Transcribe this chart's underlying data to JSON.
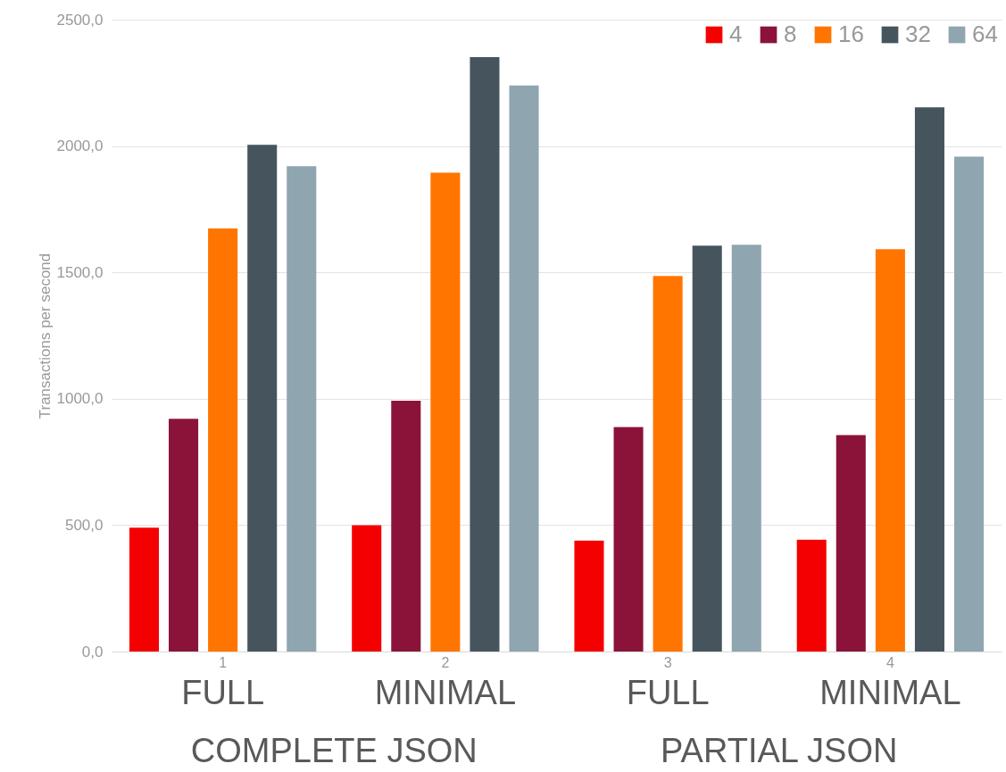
{
  "chart_data": {
    "type": "bar",
    "ylabel": "Transactions per second",
    "categories": [
      "1",
      "2",
      "3",
      "4"
    ],
    "series": [
      {
        "name": "4",
        "color": "#f50000",
        "values": [
          490,
          500,
          439,
          442
        ]
      },
      {
        "name": "8",
        "color": "#8b133a",
        "values": [
          921,
          992,
          888,
          856
        ]
      },
      {
        "name": "16",
        "color": "#ff7500",
        "values": [
          1674,
          1894,
          1486,
          1592
        ]
      },
      {
        "name": "32",
        "color": "#46555d",
        "values": [
          2005,
          2352,
          1606,
          2153
        ]
      },
      {
        "name": "64",
        "color": "#8fa5b0",
        "values": [
          1920,
          2240,
          1609,
          1958
        ]
      }
    ],
    "ylim": [
      0,
      2500
    ],
    "yticks": [
      {
        "value": 0,
        "label": "0,0"
      },
      {
        "value": 500,
        "label": "500,0"
      },
      {
        "value": 1000,
        "label": "1000,0"
      },
      {
        "value": 1500,
        "label": "1500,0"
      },
      {
        "value": 2000,
        "label": "2000,0"
      },
      {
        "value": 2500,
        "label": "2500,0"
      }
    ],
    "grid": "y",
    "legend": "top right",
    "annotations": [
      "FULL",
      "MINIMAL",
      "FULL",
      "MINIMAL",
      "COMPLETE JSON",
      "PARTIAL JSON"
    ]
  }
}
